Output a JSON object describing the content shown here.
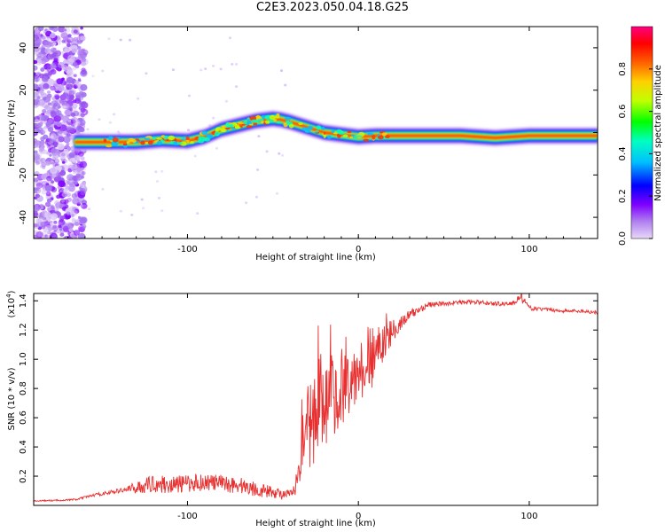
{
  "title": "C2E3.2023.050.04.18.G25",
  "chart_data": [
    {
      "type": "heatmap",
      "xlabel": "Height of straight line (km)",
      "ylabel": "Frequency (Hz)",
      "xlim": [
        -190,
        140
      ],
      "ylim": [
        -50,
        50
      ],
      "x_ticks": [
        -100,
        0,
        100
      ],
      "y_ticks": [
        -40,
        -20,
        0,
        20,
        40
      ],
      "colorbar": {
        "label": "Normalized spectral amplitude",
        "range": [
          0,
          1
        ],
        "ticks": [
          0.0,
          0.2,
          0.4,
          0.6,
          0.8
        ],
        "colors": [
          "#e8d8f8",
          "#b080f0",
          "#7f00ff",
          "#0000ff",
          "#00c0ff",
          "#00ffc0",
          "#00ff00",
          "#c0ff00",
          "#ffd000",
          "#ff6000",
          "#ff0000",
          "#ff0080"
        ]
      },
      "ridge": {
        "x": [
          -166,
          -150,
          -130,
          -115,
          -100,
          -90,
          -80,
          -70,
          -60,
          -50,
          -45,
          -40,
          -30,
          -20,
          -10,
          0,
          10,
          20,
          40,
          60,
          80,
          100,
          120,
          140
        ],
        "frequency": [
          -4.5,
          -4.5,
          -4.5,
          -3.5,
          -4,
          -2,
          1.5,
          3.5,
          5.5,
          6.5,
          6,
          5,
          2.5,
          0,
          -1,
          -2,
          -1.5,
          -1.5,
          -1.5,
          -1.5,
          -2.5,
          -1.5,
          -1.5,
          -1.5
        ]
      }
    },
    {
      "type": "line",
      "xlabel": "Height of straight line (km)",
      "ylabel": "SNR (10 * v/v)",
      "y_scale_label": "(x10",
      "y_scale_exponent": "4",
      "y_scale_suffix": ")",
      "xlim": [
        -190,
        140
      ],
      "ylim": [
        0,
        1.45
      ],
      "x_ticks": [
        -100,
        0,
        100
      ],
      "y_ticks": [
        0.2,
        0.4,
        0.6,
        0.8,
        1.0,
        1.2,
        1.4
      ],
      "y_tick_labels": [
        "0.2",
        "0.4",
        "0.6",
        "0.8",
        "1.0",
        "1.2",
        "1.4"
      ],
      "series": [
        {
          "color": "#e83030",
          "x": [
            -190,
            -175,
            -165,
            -155,
            -140,
            -130,
            -120,
            -110,
            -100,
            -90,
            -80,
            -70,
            -60,
            -50,
            -42,
            -37,
            -33,
            -30,
            -25,
            -20,
            -15,
            -10,
            -5,
            0,
            5,
            10,
            15,
            20,
            25,
            30,
            40,
            50,
            60,
            70,
            80,
            90,
            95,
            100,
            110,
            120,
            130,
            140
          ],
          "y": [
            0.03,
            0.035,
            0.04,
            0.07,
            0.1,
            0.12,
            0.15,
            0.14,
            0.15,
            0.16,
            0.15,
            0.14,
            0.11,
            0.09,
            0.07,
            0.1,
            0.4,
            0.55,
            0.6,
            0.7,
            0.75,
            0.78,
            0.8,
            0.85,
            0.9,
            1.0,
            1.1,
            1.2,
            1.25,
            1.3,
            1.37,
            1.38,
            1.39,
            1.39,
            1.38,
            1.38,
            1.43,
            1.35,
            1.34,
            1.33,
            1.33,
            1.32
          ],
          "noise": [
            0.004,
            0.005,
            0.006,
            0.01,
            0.015,
            0.04,
            0.06,
            0.06,
            0.06,
            0.06,
            0.06,
            0.06,
            0.05,
            0.04,
            0.03,
            0.04,
            0.25,
            0.3,
            0.32,
            0.3,
            0.28,
            0.25,
            0.2,
            0.2,
            0.2,
            0.15,
            0.12,
            0.08,
            0.05,
            0.04,
            0.02,
            0.015,
            0.015,
            0.015,
            0.015,
            0.015,
            0.03,
            0.015,
            0.012,
            0.012,
            0.012,
            0.012
          ]
        }
      ]
    }
  ]
}
